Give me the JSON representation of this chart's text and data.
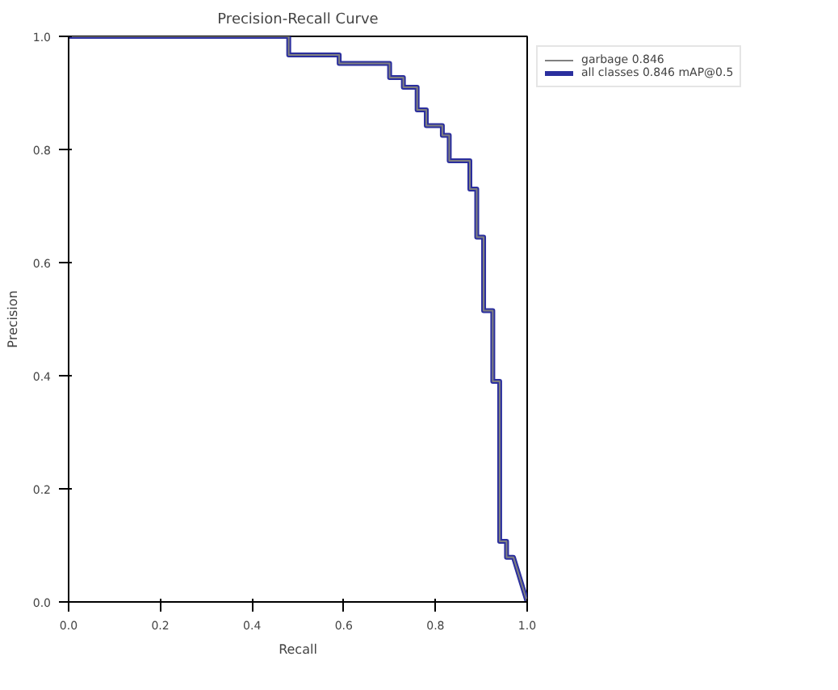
{
  "chart_data": {
    "type": "line",
    "title": "Precision-Recall Curve",
    "xlabel": "Recall",
    "ylabel": "Precision",
    "xlim": [
      0,
      1
    ],
    "ylim": [
      0,
      1
    ],
    "xticks": [
      {
        "value": 0,
        "label": "0.0"
      },
      0.2,
      0.4,
      0.6,
      0.8,
      {
        "value": 1,
        "label": "1.0"
      }
    ],
    "yticks": [
      {
        "value": 0,
        "label": "0.0"
      },
      0.2,
      0.4,
      0.6,
      0.8,
      {
        "value": 1,
        "label": "1.0"
      }
    ],
    "legend": "right",
    "line_style": "solid",
    "series": [
      {
        "name": "garbage 0.846",
        "color": "#808080",
        "x": [
          0,
          0.48,
          0.48,
          0.59,
          0.59,
          0.7,
          0.7,
          0.73,
          0.73,
          0.76,
          0.76,
          0.78,
          0.78,
          0.815,
          0.815,
          0.83,
          0.83,
          0.875,
          0.875,
          0.89,
          0.89,
          0.905,
          0.905,
          0.925,
          0.925,
          0.94,
          0.94,
          0.955,
          0.955,
          0.97,
          1.0
        ],
        "values": [
          1,
          1,
          0.967,
          0.967,
          0.952,
          0.952,
          0.927,
          0.927,
          0.91,
          0.91,
          0.87,
          0.87,
          0.842,
          0.842,
          0.825,
          0.825,
          0.78,
          0.78,
          0.73,
          0.73,
          0.645,
          0.645,
          0.515,
          0.515,
          0.39,
          0.39,
          0.107,
          0.107,
          0.079,
          0.079,
          0.0
        ]
      },
      {
        "name": "all classes 0.846 mAP@0.5",
        "color": "#2b2f9e",
        "x": [
          0,
          0.48,
          0.48,
          0.59,
          0.59,
          0.7,
          0.7,
          0.73,
          0.73,
          0.76,
          0.76,
          0.78,
          0.78,
          0.815,
          0.815,
          0.83,
          0.83,
          0.875,
          0.875,
          0.89,
          0.89,
          0.905,
          0.905,
          0.925,
          0.925,
          0.94,
          0.94,
          0.955,
          0.955,
          0.97,
          1.0
        ],
        "values": [
          1,
          1,
          0.967,
          0.967,
          0.952,
          0.952,
          0.927,
          0.927,
          0.91,
          0.91,
          0.87,
          0.87,
          0.842,
          0.842,
          0.825,
          0.825,
          0.78,
          0.78,
          0.73,
          0.73,
          0.645,
          0.645,
          0.515,
          0.515,
          0.39,
          0.39,
          0.107,
          0.107,
          0.079,
          0.079,
          0.0
        ]
      }
    ]
  }
}
